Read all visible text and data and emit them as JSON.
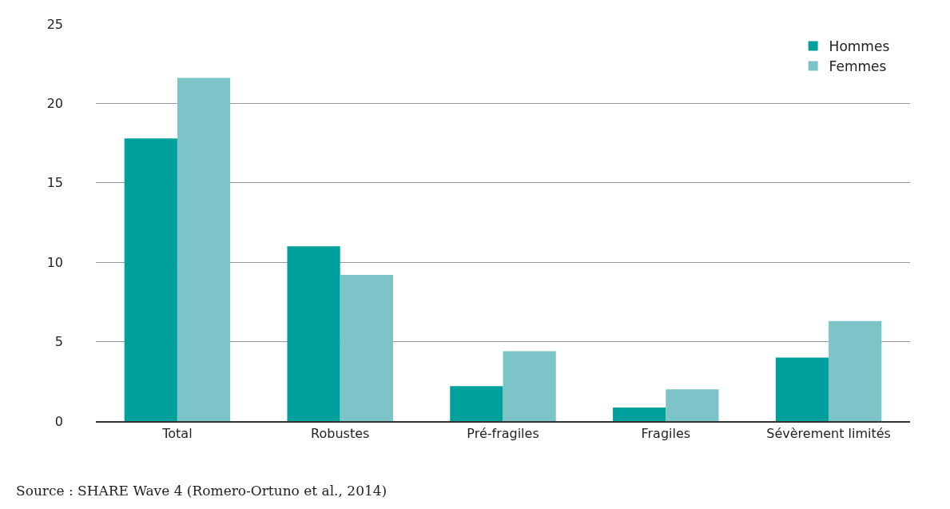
{
  "chart_data": {
    "type": "bar",
    "categories": [
      "Total",
      "Robustes",
      "Pré-fragiles",
      "Fragiles",
      "Sévèrement limités"
    ],
    "series": [
      {
        "name": "Hommes",
        "color": "#00a09c",
        "values": [
          17.8,
          11.0,
          2.2,
          0.85,
          4.0
        ]
      },
      {
        "name": "Femmes",
        "color": "#7cc4c8",
        "values": [
          21.6,
          9.2,
          4.4,
          2.0,
          6.3
        ]
      }
    ],
    "ylim": [
      0,
      25
    ],
    "yticks": [
      0,
      5,
      10,
      15,
      20,
      25
    ],
    "grid": "y",
    "legend": "top right",
    "annotations": [
      "Source : SHARE Wave 4 (Romero-Ortuno et al., 2014)"
    ]
  }
}
